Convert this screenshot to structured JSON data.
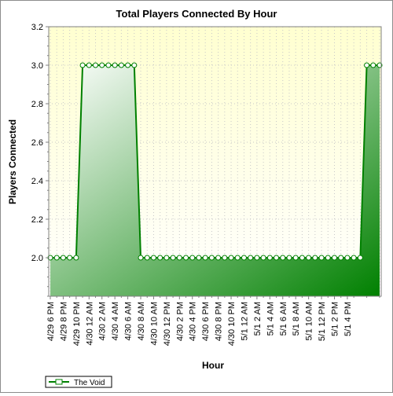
{
  "chart_data": {
    "type": "area",
    "title": "Total Players Connected By Hour",
    "xlabel": "Hour",
    "ylabel": "Players Connected",
    "ylim": [
      1.8,
      3.2
    ],
    "yticks": [
      2.0,
      2.2,
      2.4,
      2.6,
      2.8,
      3.0,
      3.2
    ],
    "ytick_labels": [
      "2.0",
      "2.2",
      "2.4",
      "2.6",
      "2.8",
      "3.0",
      "3.2"
    ],
    "grid": true,
    "legend_position": "bottom-left",
    "xtick_labels": [
      "4/29 6 PM",
      "4/29 8 PM",
      "4/29 10 PM",
      "4/30 12 AM",
      "4/30 2 AM",
      "4/30 4 AM",
      "4/30 6 AM",
      "4/30 8 AM",
      "4/30 10 AM",
      "4/30 12 PM",
      "4/30 2 PM",
      "4/30 4 PM",
      "4/30 6 PM",
      "4/30 8 PM",
      "4/30 10 PM",
      "5/1 12 AM",
      "5/1 2 AM",
      "5/1 4 AM",
      "5/1 6 AM",
      "5/1 8 AM",
      "5/1 10 AM",
      "5/1 12 PM",
      "5/1 2 PM",
      "5/1 4 PM"
    ],
    "series": [
      {
        "name": "The Void",
        "color": "#008000",
        "values": [
          2,
          2,
          2,
          2,
          2,
          3,
          3,
          3,
          3,
          3,
          3,
          3,
          3,
          3,
          2,
          2,
          2,
          2,
          2,
          2,
          2,
          2,
          2,
          2,
          2,
          2,
          2,
          2,
          2,
          2,
          2,
          2,
          2,
          2,
          2,
          2,
          2,
          2,
          2,
          2,
          2,
          2,
          2,
          2,
          2,
          2,
          2,
          2,
          2,
          3,
          3,
          3
        ]
      }
    ]
  },
  "colors": {
    "plot_background_top": "#ffffd0",
    "plot_background_bottom": "#ffffff",
    "line": "#008000",
    "fill_light": "#ffffff",
    "fill_dark": "#008000"
  }
}
